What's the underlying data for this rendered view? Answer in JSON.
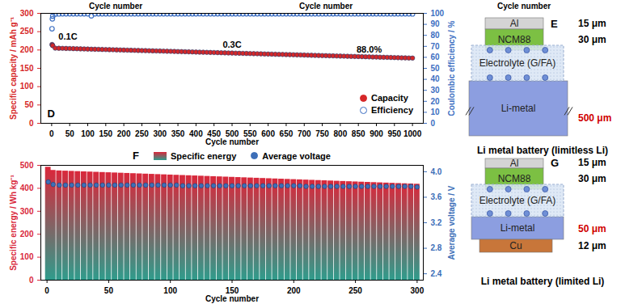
{
  "chart_data": [
    {
      "panel": "D",
      "type": "scatter",
      "x_label": "Cycle number",
      "y_label": "Specific capacity / mAh g⁻¹",
      "y2_label": "Coulombic efficiency / %",
      "xlim": [
        -30,
        1030
      ],
      "xticks": [
        0,
        50,
        100,
        150,
        200,
        250,
        300,
        350,
        400,
        450,
        500,
        550,
        600,
        650,
        700,
        750,
        800,
        850,
        900,
        950,
        1000
      ],
      "ylim": [
        0,
        300
      ],
      "yticks": [
        0,
        50,
        100,
        150,
        200,
        250,
        300
      ],
      "y2lim": [
        0,
        100
      ],
      "y2ticks": [
        0,
        10,
        20,
        30,
        40,
        50,
        60,
        70,
        80,
        90,
        100
      ],
      "legend": "bottom-right",
      "annotations": [
        {
          "text": "0.1C",
          "x": 45,
          "y": 236
        },
        {
          "text": "0.3C",
          "x": 500,
          "y": 213
        },
        {
          "text": "88.0%",
          "x": 880,
          "y": 201
        }
      ],
      "x": [
        1,
        2,
        3,
        10,
        20,
        30,
        40,
        50,
        60,
        70,
        80,
        90,
        100,
        110,
        120,
        130,
        140,
        150,
        160,
        170,
        180,
        190,
        200,
        210,
        220,
        230,
        240,
        250,
        260,
        270,
        280,
        290,
        300,
        310,
        320,
        330,
        340,
        350,
        360,
        370,
        380,
        390,
        400,
        410,
        420,
        430,
        440,
        450,
        460,
        470,
        480,
        490,
        500,
        510,
        520,
        530,
        540,
        550,
        560,
        570,
        580,
        590,
        600,
        610,
        620,
        630,
        640,
        650,
        660,
        670,
        680,
        690,
        700,
        710,
        720,
        730,
        740,
        750,
        760,
        770,
        780,
        790,
        800,
        810,
        820,
        830,
        840,
        850,
        860,
        870,
        880,
        890,
        900,
        910,
        920,
        930,
        940,
        950,
        960,
        970,
        980,
        990,
        1000
      ],
      "series": [
        {
          "name": "Capacity",
          "color": "#d62728",
          "marker": "circle",
          "values": [
            215,
            213,
            212,
            205.0,
            204.8,
            204.5,
            204.3,
            204.0,
            203.7,
            203.4,
            203.2,
            202.9,
            202.6,
            202.3,
            202.1,
            201.8,
            201.5,
            201.2,
            201.0,
            200.7,
            200.4,
            200.1,
            199.9,
            199.6,
            199.3,
            199.1,
            198.8,
            198.5,
            198.3,
            198.0,
            197.7,
            197.4,
            197.2,
            196.9,
            196.6,
            196.4,
            196.1,
            195.8,
            195.5,
            195.3,
            195.0,
            194.7,
            194.4,
            194.2,
            193.9,
            193.6,
            193.3,
            193.1,
            192.8,
            192.5,
            192.2,
            192.0,
            191.7,
            191.4,
            191.1,
            190.9,
            190.6,
            190.3,
            190.0,
            189.8,
            189.5,
            189.2,
            188.9,
            188.7,
            188.4,
            188.1,
            187.8,
            187.6,
            187.3,
            187.0,
            186.7,
            186.5,
            186.2,
            185.9,
            185.6,
            185.4,
            185.1,
            184.8,
            184.5,
            184.3,
            184.0,
            183.7,
            183.4,
            183.2,
            182.9,
            182.6,
            182.3,
            182.1,
            181.8,
            181.5,
            181.2,
            181.0,
            180.7,
            180.4,
            180.1,
            179.9,
            179.6,
            179.3,
            179.0,
            178.8,
            178.5,
            178.2,
            178.0
          ]
        },
        {
          "name": "Efficiency",
          "color": "#3d6fc2",
          "marker": "open_circle",
          "axis": "y2",
          "values": [
            86,
            95,
            97.5,
            99.3,
            99.5,
            99.6,
            99.6,
            99.6,
            99.6,
            99.6,
            99.6,
            99.6,
            99.6,
            97.8,
            99.6,
            99.6,
            99.6,
            99.6,
            99.6,
            99.6,
            99.6,
            99.6,
            99.6,
            99.6,
            99.6,
            99.6,
            99.6,
            99.6,
            99.6,
            99.6,
            99.6,
            99.6,
            99.6,
            99.6,
            99.6,
            99.6,
            99.6,
            99.6,
            99.6,
            99.6,
            99.6,
            99.6,
            99.6,
            99.7,
            99.6,
            99.6,
            99.6,
            99.6,
            99.6,
            99.6,
            99.6,
            99.6,
            99.6,
            99.6,
            99.6,
            99.6,
            99.6,
            99.6,
            99.6,
            99.6,
            99.6,
            99.6,
            99.6,
            99.6,
            99.6,
            99.6,
            99.6,
            99.6,
            99.6,
            99.6,
            99.6,
            99.6,
            99.6,
            99.6,
            99.6,
            99.6,
            99.6,
            99.6,
            99.6,
            99.6,
            99.6,
            99.7,
            99.6,
            99.6,
            99.6,
            99.6,
            99.6,
            99.6,
            99.6,
            99.6,
            99.6,
            99.6,
            99.6,
            99.6,
            99.6,
            99.6,
            99.6,
            99.6,
            99.6,
            99.6,
            99.6,
            99.6,
            99.5
          ]
        }
      ]
    },
    {
      "panel": "F",
      "type": "bar",
      "x_label": "Cycle number",
      "y_label": "Specific energy / Wh kg⁻¹",
      "y2_label": "Average voltage / V",
      "xlim": [
        -5,
        305
      ],
      "xticks": [
        0,
        50,
        100,
        150,
        200,
        250,
        300
      ],
      "ylim": [
        0,
        500
      ],
      "yticks": [
        0,
        100,
        200,
        300,
        400,
        500
      ],
      "y2lim": [
        2.3,
        4.1
      ],
      "y2ticks": [
        2.4,
        2.8,
        3.2,
        3.6,
        {
          "value": 4,
          "label": "4.0"
        }
      ],
      "legend": "top",
      "x": [
        1,
        5,
        10,
        15,
        20,
        25,
        30,
        35,
        40,
        45,
        50,
        55,
        60,
        65,
        70,
        75,
        80,
        85,
        90,
        95,
        100,
        105,
        110,
        115,
        120,
        125,
        130,
        135,
        140,
        145,
        150,
        155,
        160,
        165,
        170,
        175,
        180,
        185,
        190,
        195,
        200,
        205,
        210,
        215,
        220,
        225,
        230,
        235,
        240,
        245,
        250,
        255,
        260,
        265,
        270,
        275,
        280,
        285,
        290,
        295,
        300
      ],
      "series": [
        {
          "name": "Specific energy",
          "type": "bar",
          "color": "#d9283b",
          "values": [
            492,
            478,
            476,
            475,
            474,
            473,
            472,
            471,
            470,
            469,
            468,
            467,
            466,
            465,
            464,
            463,
            462,
            461,
            460,
            459,
            458,
            457,
            456,
            455,
            454,
            453,
            452,
            451,
            450,
            449,
            448,
            447,
            446,
            445,
            444,
            443,
            442,
            441,
            440,
            439,
            438,
            437,
            436,
            435,
            434,
            433,
            432,
            431,
            430,
            429,
            428,
            427,
            426,
            425,
            424,
            423,
            422,
            421,
            420,
            419,
            418
          ]
        },
        {
          "name": "Average voltage",
          "type": "scatter",
          "color": "#3d6fb8",
          "marker": "circle",
          "axis": "y2",
          "values": [
            3.84,
            3.8,
            3.79,
            3.79,
            3.79,
            3.79,
            3.79,
            3.79,
            3.79,
            3.79,
            3.79,
            3.79,
            3.79,
            3.79,
            3.79,
            3.79,
            3.79,
            3.79,
            3.79,
            3.79,
            3.79,
            3.79,
            3.78,
            3.78,
            3.78,
            3.78,
            3.78,
            3.78,
            3.78,
            3.78,
            3.78,
            3.78,
            3.78,
            3.78,
            3.78,
            3.78,
            3.78,
            3.78,
            3.78,
            3.78,
            3.78,
            3.78,
            3.77,
            3.77,
            3.77,
            3.77,
            3.77,
            3.77,
            3.77,
            3.77,
            3.77,
            3.77,
            3.77,
            3.77,
            3.77,
            3.77,
            3.77,
            3.77,
            3.77,
            3.77,
            3.76
          ]
        }
      ]
    }
  ],
  "diagrams": [
    {
      "panel": "E",
      "layers": [
        {
          "label": "Al",
          "color": "#d4d4d4",
          "thickness": "15 μm"
        },
        {
          "label": "NCM88",
          "color": "#7cc043",
          "thickness": "30 μm"
        },
        {
          "label": "Electrolyte (G/FA)",
          "color": "#dbe6f5"
        },
        {
          "label": "Li-metal",
          "color": "#8c9ee0",
          "thickness": "500 μm",
          "thickness_color": "#d00000"
        }
      ],
      "caption": "Li metal battery (limitless Li)"
    },
    {
      "panel": "G",
      "layers": [
        {
          "label": "Al",
          "color": "#d4d4d4",
          "thickness": "15 μm"
        },
        {
          "label": "NCM88",
          "color": "#7cc043",
          "thickness": "30 μm"
        },
        {
          "label": "Electrolyte (G/FA)",
          "color": "#dbe6f5"
        },
        {
          "label": "Li-metal",
          "color": "#8c9ee0",
          "thickness": "50 μm",
          "thickness_color": "#d00000"
        },
        {
          "label": "Cu",
          "color": "#c8763a",
          "thickness": "12 μm"
        }
      ],
      "caption": "Li metal battery (limited Li)"
    }
  ],
  "stray_labels": [
    "Cycle number",
    "Cycle number",
    "Cycle number"
  ]
}
